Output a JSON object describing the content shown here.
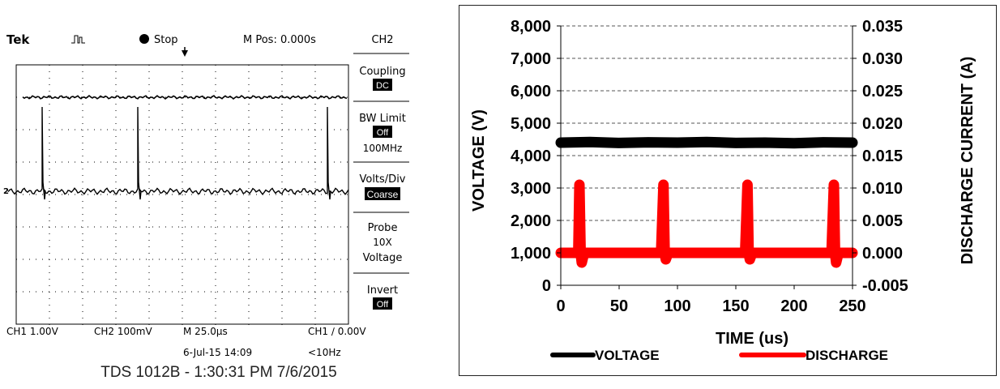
{
  "oscilloscope": {
    "brand": "Tek",
    "run_state": "Stop",
    "m_pos": "M Pos: 0.000s",
    "menu_title": "CH2",
    "menu": [
      {
        "label": "Coupling",
        "value": "DC"
      },
      {
        "label": "BW Limit",
        "value": "Off",
        "sub": "100MHz"
      },
      {
        "label": "Volts/Div",
        "value": "Coarse"
      },
      {
        "label": "Probe",
        "value": "10X",
        "sub": "Voltage"
      },
      {
        "label": "Invert",
        "value": "Off"
      }
    ],
    "ch1_scale": "CH1  1.00V",
    "ch2_scale": "CH2  100mV",
    "timebase": "M 25.0µs",
    "trigger": "CH1 ∕ 0.00V",
    "datetime": "6-Jul-15 14:09",
    "freq": "<10Hz",
    "ch2_marker": "2",
    "caption": "TDS 1012B - 1:30:31 PM   7/6/2015"
  },
  "chart_data": {
    "type": "line",
    "title": "",
    "xlabel": "TIME (us)",
    "ylabel": "VOLTAGE (V)",
    "y2label": "DISCHARGE CURRENT (A)",
    "xlim": [
      0,
      250
    ],
    "ylim": [
      0,
      8000
    ],
    "y2lim": [
      -0.005,
      0.035
    ],
    "x_ticks": [
      "0",
      "50",
      "100",
      "150",
      "200",
      "250"
    ],
    "y_ticks": [
      "0",
      "1,000",
      "2,000",
      "3,000",
      "4,000",
      "5,000",
      "6,000",
      "7,000",
      "8,000"
    ],
    "y2_ticks": [
      "-0.005",
      "0.000",
      "0.005",
      "0.010",
      "0.015",
      "0.020",
      "0.025",
      "0.030",
      "0.035"
    ],
    "grid": "horizontal dashed",
    "legend_position": "bottom",
    "series": [
      {
        "name": "VOLTAGE",
        "axis": "left",
        "color": "#000000",
        "x": [
          0,
          25,
          50,
          75,
          100,
          125,
          150,
          175,
          200,
          225,
          250
        ],
        "y": [
          4400,
          4420,
          4390,
          4410,
          4400,
          4420,
          4390,
          4400,
          4380,
          4410,
          4400
        ]
      },
      {
        "name": "DISCHARGE",
        "axis": "right",
        "color": "#ff0000",
        "x": [
          0,
          10,
          15,
          16,
          17,
          18,
          20,
          30,
          50,
          70,
          86,
          88,
          89,
          90,
          92,
          110,
          130,
          150,
          158,
          160,
          161,
          162,
          164,
          180,
          200,
          220,
          232,
          234,
          235,
          236,
          238,
          250
        ],
        "y": [
          0.0,
          0.0,
          0.0,
          0.0105,
          0.0,
          -0.0015,
          0.0,
          0.0,
          0.0,
          0.0,
          0.0,
          0.0105,
          0.0,
          -0.001,
          0.0,
          0.0,
          0.0,
          0.0,
          0.0,
          0.0105,
          0.0,
          -0.001,
          0.0,
          0.0,
          0.0,
          0.0,
          0.0,
          0.0105,
          0.0,
          -0.0015,
          0.0,
          0.0
        ]
      }
    ]
  }
}
